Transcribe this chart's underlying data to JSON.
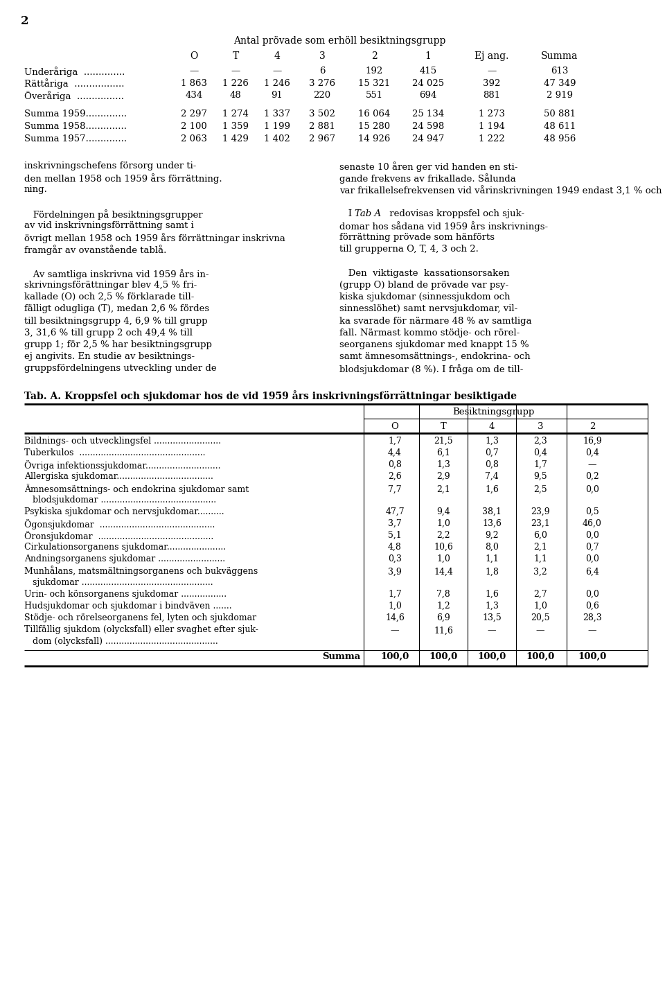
{
  "page_number": "2",
  "background_color": "#ffffff",
  "text_color": "#000000",
  "table1_title": "Antal prövade som erhöll besiktningsgrupp",
  "table1_headers": [
    "O",
    "T",
    "4",
    "3",
    "2",
    "1",
    "Ej ang.",
    "Summa"
  ],
  "table1_rows": [
    [
      "Underåriga  ..............",
      "—",
      "—",
      "—",
      "6",
      "192",
      "415",
      "—",
      "613"
    ],
    [
      "Rättåriga  .................",
      "1 863",
      "1 226",
      "1 246",
      "3 276",
      "15 321",
      "24 025",
      "392",
      "47 349"
    ],
    [
      "Överåriga  ................",
      "434",
      "48",
      "91",
      "220",
      "551",
      "694",
      "881",
      "2 919"
    ]
  ],
  "table1_summa_rows": [
    [
      "Summa 1959..............",
      "2 297",
      "1 274",
      "1 337",
      "3 502",
      "16 064",
      "25 134",
      "1 273",
      "50 881"
    ],
    [
      "Summa 1958..............",
      "2 100",
      "1 359",
      "1 199",
      "2 881",
      "15 280",
      "24 598",
      "1 194",
      "48 611"
    ],
    [
      "Summa 1957..............",
      "2 063",
      "1 429",
      "1 402",
      "2 967",
      "14 926",
      "24 947",
      "1 222",
      "48 956"
    ]
  ],
  "table2_title": "Tab. A. Kroppsfel och sjukdomar hos de vid 1959 års inskrivningsförrättningar besiktigade",
  "table2_group_header": "Besiktningsgrupp",
  "table2_col_headers": [
    "O",
    "T",
    "4",
    "3",
    "2"
  ],
  "table2_rows": [
    [
      "Bildnings- och utvecklingsfel .........................",
      "1,7",
      "21,5",
      "1,3",
      "2,3",
      "16,9"
    ],
    [
      "Tuberkulos  ...............................................",
      "4,4",
      "6,1",
      "0,7",
      "0,4",
      "0,4"
    ],
    [
      "Övriga infektionssjukdomar............................",
      "0,8",
      "1,3",
      "0,8",
      "1,7",
      "—"
    ],
    [
      "Allergiska sjukdomar....................................",
      "2,6",
      "2,9",
      "7,4",
      "9,5",
      "0,2"
    ],
    [
      "Ämnesomsättnings- och endokrina sjukdomar samt",
      "7,7",
      "2,1",
      "1,6",
      "2,5",
      "0,0"
    ],
    [
      "Psykiska sjukdomar och nervsjukdomar..........",
      "47,7",
      "9,4",
      "38,1",
      "23,9",
      "0,5"
    ],
    [
      "Ögonsjukdomar  ...........................................",
      "3,7",
      "1,0",
      "13,6",
      "23,1",
      "46,0"
    ],
    [
      "Öronsjukdomar  ...........................................",
      "5,1",
      "2,2",
      "9,2",
      "6,0",
      "0,0"
    ],
    [
      "Cirkulationsorganens sjukdomar......................",
      "4,8",
      "10,6",
      "8,0",
      "2,1",
      "0,7"
    ],
    [
      "Andningsorganens sjukdomar .........................",
      "0,3",
      "1,0",
      "1,1",
      "1,1",
      "0,0"
    ],
    [
      "Munhålans, matsmältningsorganens och bukväggens",
      "3,9",
      "14,4",
      "1,8",
      "3,2",
      "6,4"
    ],
    [
      "Urin- och könsorganens sjukdomar .................",
      "1,7",
      "7,8",
      "1,6",
      "2,7",
      "0,0"
    ],
    [
      "Hudsjukdomar och sjukdomar i bindväven .......",
      "1,0",
      "1,2",
      "1,3",
      "1,0",
      "0,6"
    ],
    [
      "Stödje- och rörelseorganens fel, lyten och sjukdomar",
      "14,6",
      "6,9",
      "13,5",
      "20,5",
      "28,3"
    ],
    [
      "Tillfällig sjukdom (olycksfall) eller svaghet efter sjuk-",
      "—",
      "11,6",
      "—",
      "—",
      "—"
    ]
  ],
  "table2_row2": [
    "",
    "   blodsjukdomar ...........................................",
    "",
    "",
    "",
    "",
    "",
    "",
    "",
    "",
    "   sjukdomar .................................................",
    "",
    "",
    "",
    "   dom (olycksfall) .........................................."
  ],
  "table2_summa_row": [
    "Summa",
    "100,0",
    "100,0",
    "100,0",
    "100,0",
    "100,0"
  ]
}
